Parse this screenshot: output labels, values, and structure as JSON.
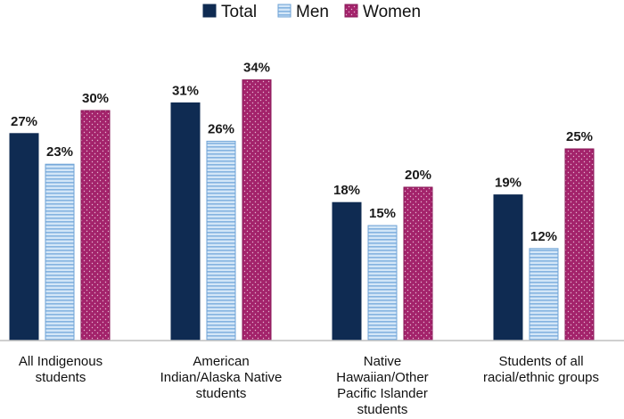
{
  "chart_data": {
    "type": "bar",
    "categories": [
      [
        "All Indigenous",
        "students"
      ],
      [
        "American",
        "Indian/Alaska Native",
        "students"
      ],
      [
        "Native",
        "Hawaiian/Other",
        "Pacific Islander",
        "students"
      ],
      [
        "Students of all",
        "racial/ethnic groups"
      ]
    ],
    "series": [
      {
        "name": "Total",
        "values": [
          27,
          31,
          18,
          19
        ],
        "labels": [
          "27%",
          "31%",
          "18%",
          "19%"
        ],
        "color": "#0f2b52",
        "pattern": "solid"
      },
      {
        "name": "Men",
        "values": [
          23,
          26,
          15,
          12
        ],
        "labels": [
          "23%",
          "26%",
          "15%",
          "12%"
        ],
        "color": "#a9cbec",
        "pattern": "horizontal-lines"
      },
      {
        "name": "Women",
        "values": [
          30,
          34,
          20,
          25
        ],
        "labels": [
          "30%",
          "34%",
          "20%",
          "25%"
        ],
        "color": "#a5236b",
        "pattern": "dots"
      }
    ],
    "ylim": [
      0,
      40
    ],
    "grid": false,
    "legend_placement": "top-center"
  }
}
